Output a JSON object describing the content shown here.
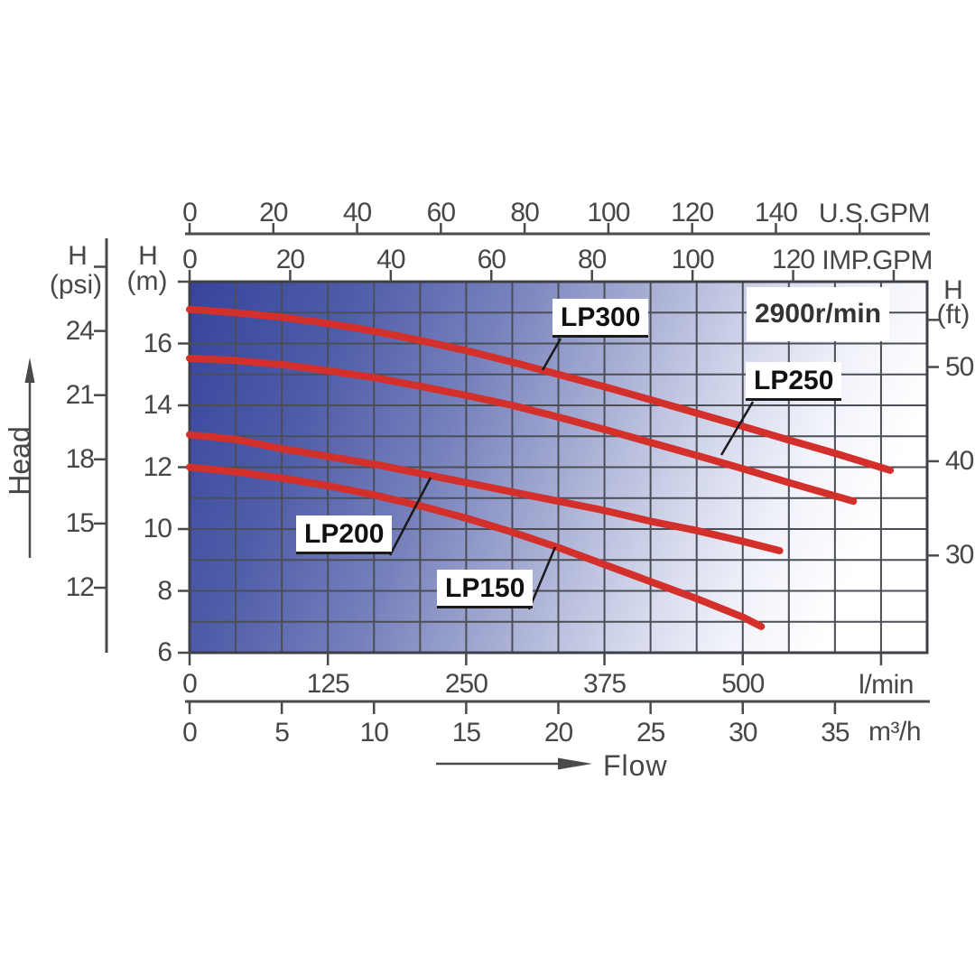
{
  "chart_data": {
    "type": "line",
    "note": "2900r/min",
    "xlabel": "Flow",
    "ylabel": "Head",
    "x_range_m3h": [
      0,
      40
    ],
    "y_range_m": [
      6,
      18
    ],
    "grid_step": {
      "x_m3h": 2.5,
      "y_m": 1
    },
    "grid": "on",
    "x_axes": [
      {
        "unit": "U.S.GPM",
        "ticks": [
          0,
          20,
          40,
          60,
          80,
          100,
          120,
          140
        ],
        "extra_ticks": [
          160
        ]
      },
      {
        "unit": "IMP.GPM",
        "ticks": [
          0,
          20,
          40,
          60,
          80,
          100,
          120
        ],
        "extra_ticks": [
          140
        ]
      },
      {
        "unit": "l/min",
        "ticks": [
          0,
          125,
          250,
          375,
          500
        ],
        "extra_ticks": [
          625
        ]
      },
      {
        "unit": "m³/h",
        "ticks": [
          0,
          5,
          10,
          15,
          20,
          25,
          30,
          35
        ],
        "extra_ticks": []
      }
    ],
    "y_axes": [
      {
        "name": "H",
        "unit": "(psi)",
        "ticks": [
          24,
          21,
          18,
          15,
          12
        ],
        "extra_ticks": [
          27
        ]
      },
      {
        "name": "H",
        "unit": "(m)",
        "ticks": [
          16,
          14,
          12,
          10,
          8,
          6
        ],
        "extra_ticks": [
          18
        ]
      },
      {
        "name": "H",
        "unit": "(ft)",
        "ticks": [
          50,
          40,
          30
        ],
        "extra_ticks": [
          55
        ]
      }
    ],
    "series": [
      {
        "name": "LP300",
        "color": "#d3302c",
        "points_m3h_m": [
          [
            0,
            17.1
          ],
          [
            2.5,
            17.0
          ],
          [
            5,
            16.85
          ],
          [
            7.5,
            16.65
          ],
          [
            10,
            16.4
          ],
          [
            12.5,
            16.1
          ],
          [
            15,
            15.77
          ],
          [
            17.5,
            15.4
          ],
          [
            20,
            15.0
          ],
          [
            22.5,
            14.6
          ],
          [
            25,
            14.18
          ],
          [
            27.5,
            13.75
          ],
          [
            30,
            13.32
          ],
          [
            32.5,
            12.88
          ],
          [
            35,
            12.45
          ],
          [
            38,
            11.9
          ]
        ]
      },
      {
        "name": "LP250",
        "color": "#d3302c",
        "points_m3h_m": [
          [
            0,
            15.52
          ],
          [
            2.5,
            15.45
          ],
          [
            5,
            15.32
          ],
          [
            7.5,
            15.12
          ],
          [
            10,
            14.9
          ],
          [
            12.5,
            14.62
          ],
          [
            15,
            14.32
          ],
          [
            17.5,
            14.0
          ],
          [
            20,
            13.62
          ],
          [
            22.5,
            13.22
          ],
          [
            25,
            12.8
          ],
          [
            27.5,
            12.38
          ],
          [
            30,
            11.95
          ],
          [
            32.5,
            11.5
          ],
          [
            36,
            10.9
          ]
        ]
      },
      {
        "name": "LP200",
        "color": "#d3302c",
        "points_m3h_m": [
          [
            0,
            13.05
          ],
          [
            2.5,
            12.9
          ],
          [
            5,
            12.6
          ],
          [
            7.5,
            12.35
          ],
          [
            10,
            12.1
          ],
          [
            12.5,
            11.8
          ],
          [
            15,
            11.5
          ],
          [
            17.5,
            11.2
          ],
          [
            20,
            10.9
          ],
          [
            22.5,
            10.6
          ],
          [
            25,
            10.25
          ],
          [
            27.5,
            9.95
          ],
          [
            30,
            9.6
          ],
          [
            32,
            9.3
          ]
        ]
      },
      {
        "name": "LP150",
        "color": "#d3302c",
        "points_m3h_m": [
          [
            0,
            12.0
          ],
          [
            2.5,
            11.85
          ],
          [
            5,
            11.65
          ],
          [
            7.5,
            11.4
          ],
          [
            10,
            11.1
          ],
          [
            12.5,
            10.75
          ],
          [
            15,
            10.35
          ],
          [
            17.5,
            9.9
          ],
          [
            20,
            9.4
          ],
          [
            22.5,
            8.85
          ],
          [
            25,
            8.3
          ],
          [
            27.5,
            7.75
          ],
          [
            30,
            7.15
          ],
          [
            31,
            6.85
          ]
        ]
      }
    ],
    "colors": {
      "curve_red": "#d3302c",
      "grid_line": "#4b4e57",
      "axis_line": "#4a4a4a",
      "plot_blue": "#36459c"
    }
  }
}
